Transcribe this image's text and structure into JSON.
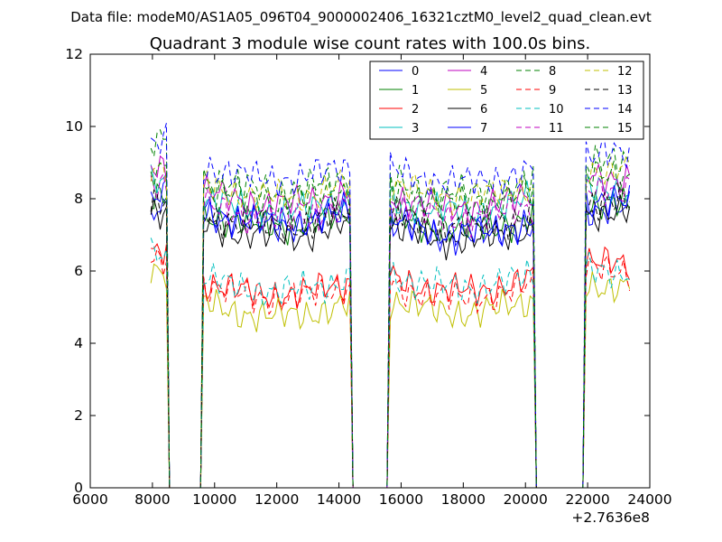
{
  "figure": {
    "suptitle": "Data file: modeM0/AS1A05_096T04_9000002406_16321cztM0_level2_quad_clean.evt"
  },
  "chart_data": {
    "type": "line",
    "title": "Quadrant 3 module wise count rates with 100.0s bins.",
    "xlabel": "",
    "ylabel": "",
    "x_offset_label": "+2.7636e8",
    "xlim": [
      6000,
      24000
    ],
    "ylim": [
      0,
      12
    ],
    "xticks": [
      "6000",
      "8000",
      "10000",
      "12000",
      "14000",
      "16000",
      "18000",
      "20000",
      "22000",
      "24000"
    ],
    "yticks": [
      "0",
      "2",
      "4",
      "6",
      "8",
      "10",
      "12"
    ],
    "grid": false,
    "legend_position": "top-right",
    "legend_columns": 4,
    "segments": [
      [
        7950,
        8450
      ],
      [
        9650,
        14350
      ],
      [
        15650,
        20250
      ],
      [
        21950,
        23350
      ]
    ],
    "gap_points": [
      8550,
      9550,
      14450,
      15550,
      20350,
      21850
    ],
    "series": [
      {
        "name": "0",
        "color": "#0000ff",
        "dash": false,
        "levels": [
          7.8,
          7.7,
          7.3,
          7.7
        ]
      },
      {
        "name": "1",
        "color": "#008000",
        "dash": false,
        "levels": [
          8.1,
          7.6,
          7.5,
          7.8
        ]
      },
      {
        "name": "2",
        "color": "#ff0000",
        "dash": false,
        "levels": [
          6.5,
          5.7,
          5.8,
          6.2
        ]
      },
      {
        "name": "3",
        "color": "#00bfbf",
        "dash": false,
        "levels": [
          8.4,
          8.0,
          8.0,
          8.2
        ]
      },
      {
        "name": "4",
        "color": "#bf00bf",
        "dash": false,
        "levels": [
          8.8,
          8.2,
          8.1,
          8.6
        ]
      },
      {
        "name": "5",
        "color": "#bfbf00",
        "dash": false,
        "levels": [
          6.0,
          5.1,
          5.2,
          5.6
        ]
      },
      {
        "name": "6",
        "color": "#000000",
        "dash": false,
        "levels": [
          7.7,
          7.3,
          7.2,
          7.6
        ]
      },
      {
        "name": "7",
        "color": "#0000ff",
        "dash": false,
        "levels": [
          8.2,
          7.6,
          7.4,
          7.9
        ]
      },
      {
        "name": "8",
        "color": "#008000",
        "dash": true,
        "levels": [
          9.6,
          8.6,
          8.5,
          9.0
        ]
      },
      {
        "name": "9",
        "color": "#ff0000",
        "dash": true,
        "levels": [
          6.2,
          5.6,
          5.6,
          6.0
        ]
      },
      {
        "name": "10",
        "color": "#00bfbf",
        "dash": true,
        "levels": [
          6.4,
          5.8,
          5.9,
          6.0
        ]
      },
      {
        "name": "11",
        "color": "#bf00bf",
        "dash": true,
        "levels": [
          8.4,
          7.8,
          7.8,
          8.3
        ]
      },
      {
        "name": "12",
        "color": "#bfbf00",
        "dash": true,
        "levels": [
          8.9,
          8.4,
          8.4,
          8.8
        ]
      },
      {
        "name": "13",
        "color": "#000000",
        "dash": true,
        "levels": [
          8.0,
          7.6,
          7.6,
          7.9
        ]
      },
      {
        "name": "14",
        "color": "#0000ff",
        "dash": true,
        "levels": [
          9.6,
          8.9,
          8.8,
          9.2
        ]
      },
      {
        "name": "15",
        "color": "#008000",
        "dash": true,
        "levels": [
          8.7,
          8.3,
          8.2,
          8.6
        ]
      }
    ]
  }
}
